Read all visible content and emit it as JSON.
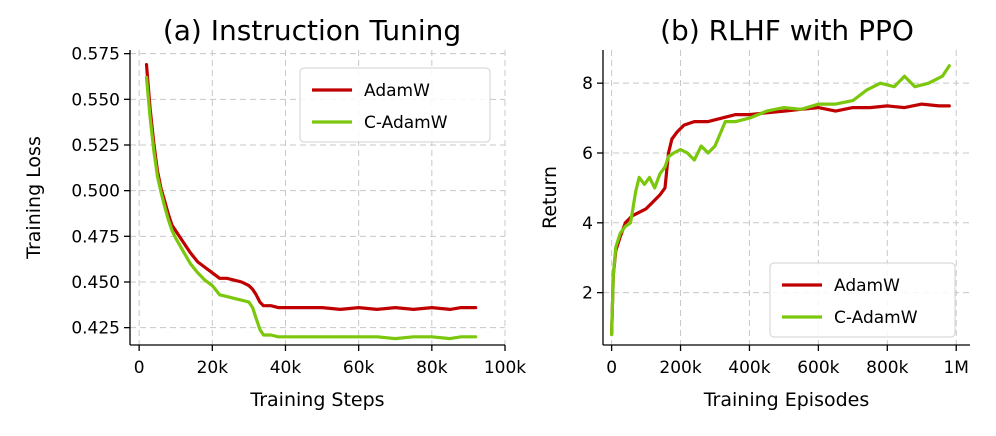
{
  "chart_data": [
    {
      "type": "line",
      "title": "(a) Instruction Tuning",
      "xlabel": "Training Steps",
      "ylabel": "Training Loss",
      "xlim": [
        -2500,
        100000
      ],
      "ylim": [
        0.4155,
        0.577
      ],
      "x_ticks": [
        0,
        20000,
        40000,
        60000,
        80000,
        100000
      ],
      "x_tick_labels": [
        "0",
        "20k",
        "40k",
        "60k",
        "80k",
        "100k"
      ],
      "y_ticks": [
        0.425,
        0.45,
        0.475,
        0.5,
        0.525,
        0.55,
        0.575
      ],
      "y_tick_labels": [
        "0.425",
        "0.450",
        "0.475",
        "0.500",
        "0.525",
        "0.550",
        "0.575"
      ],
      "grid": true,
      "legend": "top-right",
      "series": [
        {
          "name": "AdamW",
          "color": "#c00000",
          "x": [
            2000,
            3000,
            4000,
            5000,
            6000,
            7000,
            8000,
            9000,
            10000,
            12000,
            14000,
            16000,
            18000,
            20000,
            22000,
            24000,
            26000,
            28000,
            30000,
            31000,
            32000,
            33000,
            34000,
            36000,
            38000,
            40000,
            45000,
            50000,
            55000,
            60000,
            65000,
            70000,
            75000,
            80000,
            85000,
            88000,
            92000
          ],
          "y": [
            0.569,
            0.545,
            0.526,
            0.511,
            0.501,
            0.494,
            0.487,
            0.481,
            0.478,
            0.472,
            0.466,
            0.461,
            0.458,
            0.455,
            0.452,
            0.452,
            0.451,
            0.45,
            0.448,
            0.446,
            0.443,
            0.439,
            0.437,
            0.437,
            0.436,
            0.436,
            0.436,
            0.436,
            0.435,
            0.436,
            0.435,
            0.436,
            0.435,
            0.436,
            0.435,
            0.436,
            0.436
          ]
        },
        {
          "name": "C-AdamW",
          "color": "#7ac70c",
          "x": [
            2000,
            3000,
            4000,
            5000,
            6000,
            7000,
            8000,
            9000,
            10000,
            12000,
            14000,
            16000,
            18000,
            20000,
            22000,
            24000,
            26000,
            28000,
            30000,
            31000,
            32000,
            33000,
            34000,
            36000,
            38000,
            40000,
            45000,
            50000,
            55000,
            60000,
            65000,
            70000,
            75000,
            80000,
            85000,
            88000,
            92000
          ],
          "y": [
            0.562,
            0.54,
            0.522,
            0.508,
            0.499,
            0.491,
            0.484,
            0.478,
            0.474,
            0.467,
            0.46,
            0.455,
            0.451,
            0.448,
            0.443,
            0.442,
            0.441,
            0.44,
            0.439,
            0.436,
            0.43,
            0.424,
            0.421,
            0.421,
            0.42,
            0.42,
            0.42,
            0.42,
            0.42,
            0.42,
            0.42,
            0.419,
            0.42,
            0.42,
            0.419,
            0.42,
            0.42
          ]
        }
      ]
    },
    {
      "type": "line",
      "title": "(b) RLHF with PPO",
      "xlabel": "Training Episodes",
      "ylabel": "Return",
      "xlim": [
        -25000,
        1040000
      ],
      "ylim": [
        0.5,
        8.95
      ],
      "x_ticks": [
        0,
        200000,
        400000,
        600000,
        800000,
        1000000
      ],
      "x_tick_labels": [
        "0",
        "200k",
        "400k",
        "600k",
        "800k",
        "1M"
      ],
      "y_ticks": [
        2,
        4,
        6,
        8
      ],
      "y_tick_labels": [
        "2",
        "4",
        "6",
        "8"
      ],
      "grid": true,
      "legend": "bottom-right",
      "series": [
        {
          "name": "AdamW",
          "color": "#c00000",
          "x": [
            0,
            5000,
            12000,
            25000,
            40000,
            60000,
            80000,
            100000,
            120000,
            140000,
            155000,
            165000,
            175000,
            190000,
            210000,
            240000,
            280000,
            320000,
            360000,
            400000,
            450000,
            500000,
            550000,
            600000,
            650000,
            700000,
            750000,
            800000,
            850000,
            900000,
            950000,
            980000
          ],
          "y": [
            0.8,
            2.5,
            3.2,
            3.6,
            4.0,
            4.2,
            4.3,
            4.4,
            4.6,
            4.8,
            5.0,
            6.0,
            6.4,
            6.6,
            6.8,
            6.9,
            6.9,
            7.0,
            7.1,
            7.1,
            7.15,
            7.2,
            7.25,
            7.3,
            7.2,
            7.3,
            7.3,
            7.35,
            7.3,
            7.4,
            7.35,
            7.35
          ]
        },
        {
          "name": "C-AdamW",
          "color": "#7ac70c",
          "x": [
            0,
            5000,
            12000,
            25000,
            40000,
            55000,
            70000,
            80000,
            95000,
            110000,
            125000,
            140000,
            155000,
            165000,
            180000,
            200000,
            220000,
            240000,
            260000,
            280000,
            300000,
            330000,
            360000,
            400000,
            450000,
            500000,
            550000,
            600000,
            650000,
            700000,
            740000,
            780000,
            820000,
            850000,
            880000,
            920000,
            960000,
            980000
          ],
          "y": [
            0.8,
            2.5,
            3.3,
            3.7,
            3.9,
            4.0,
            4.9,
            5.3,
            5.1,
            5.3,
            5.0,
            5.4,
            5.6,
            5.9,
            6.0,
            6.1,
            6.0,
            5.8,
            6.2,
            6.0,
            6.2,
            6.9,
            6.9,
            7.0,
            7.2,
            7.3,
            7.25,
            7.4,
            7.4,
            7.5,
            7.8,
            8.0,
            7.9,
            8.2,
            7.9,
            8.0,
            8.2,
            8.5
          ]
        }
      ]
    }
  ]
}
